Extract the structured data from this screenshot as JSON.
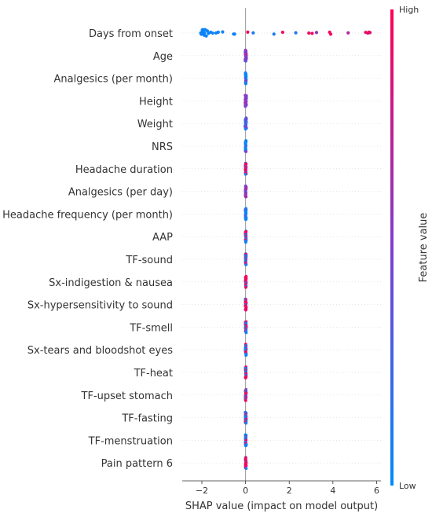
{
  "chart_data": {
    "type": "scatter",
    "title": "",
    "xlabel": "SHAP value (impact on model output)",
    "xlim": [
      -2.9,
      6.2
    ],
    "xticks": [
      -2,
      0,
      2,
      4,
      6
    ],
    "xtick_labels": [
      "−2",
      "0",
      "2",
      "4",
      "6"
    ],
    "colorbar": {
      "label": "Feature value",
      "high": "High",
      "low": "Low",
      "high_color": "#ff0052",
      "low_color": "#008bfb"
    },
    "features": [
      {
        "name": "Days from onset",
        "points": [
          {
            "x": -2.05,
            "v": 0.05
          },
          {
            "x": -2.02,
            "v": 0.05
          },
          {
            "x": -1.98,
            "v": 0.05
          },
          {
            "x": -1.95,
            "v": 0.05
          },
          {
            "x": -1.92,
            "v": 0.05
          },
          {
            "x": -1.88,
            "v": 0.05
          },
          {
            "x": -1.85,
            "v": 0.05
          },
          {
            "x": -1.8,
            "v": 0.05
          },
          {
            "x": -2.0,
            "v": 0.05
          },
          {
            "x": -1.97,
            "v": 0.05
          },
          {
            "x": -1.93,
            "v": 0.05
          },
          {
            "x": -1.9,
            "v": 0.05
          },
          {
            "x": -2.03,
            "v": 0.05
          },
          {
            "x": -1.96,
            "v": 0.05
          },
          {
            "x": -1.89,
            "v": 0.05
          },
          {
            "x": -1.75,
            "v": 0.05
          },
          {
            "x": -1.7,
            "v": 0.05
          },
          {
            "x": -1.6,
            "v": 0.05
          },
          {
            "x": -1.5,
            "v": 0.05
          },
          {
            "x": -1.35,
            "v": 0.05
          },
          {
            "x": -1.25,
            "v": 0.05
          },
          {
            "x": -1.05,
            "v": 0.05
          },
          {
            "x": -0.55,
            "v": 0.05
          },
          {
            "x": -0.5,
            "v": 0.05
          },
          {
            "x": 0.1,
            "v": 0.95
          },
          {
            "x": 0.35,
            "v": 0.1
          },
          {
            "x": 1.3,
            "v": 0.1
          },
          {
            "x": 1.7,
            "v": 0.95
          },
          {
            "x": 2.3,
            "v": 0.15
          },
          {
            "x": 2.9,
            "v": 0.95
          },
          {
            "x": 3.05,
            "v": 0.9
          },
          {
            "x": 3.25,
            "v": 0.6
          },
          {
            "x": 3.85,
            "v": 0.95
          },
          {
            "x": 3.9,
            "v": 0.95
          },
          {
            "x": 4.7,
            "v": 0.7
          },
          {
            "x": 5.5,
            "v": 0.95
          },
          {
            "x": 5.6,
            "v": 0.9
          },
          {
            "x": 5.7,
            "v": 0.8
          },
          {
            "x": 5.65,
            "v": 0.95
          }
        ]
      },
      {
        "name": "Age",
        "spread": 0.03,
        "mix": "purple"
      },
      {
        "name": "Analgesics (per month)",
        "spread": 0.02,
        "mix": "blue"
      },
      {
        "name": "Height",
        "spread": 0.03,
        "mix": "purple"
      },
      {
        "name": "Weight",
        "spread": 0.03,
        "mix": "bluepurple"
      },
      {
        "name": "NRS",
        "spread": 0.02,
        "mix": "blue"
      },
      {
        "name": "Headache duration",
        "spread": 0.02,
        "mix": "red"
      },
      {
        "name": "Analgesics (per day)",
        "spread": 0.02,
        "mix": "purple"
      },
      {
        "name": "Headache frequency (per month)",
        "spread": 0.02,
        "mix": "blue"
      },
      {
        "name": "AAP",
        "spread": 0.02,
        "mix": "bluered"
      },
      {
        "name": "TF-sound",
        "spread": 0.02,
        "mix": "bluered"
      },
      {
        "name": "Sx-indigestion & nausea",
        "spread": 0.02,
        "mix": "red"
      },
      {
        "name": "Sx-hypersensitivity to sound",
        "spread": 0.02,
        "mix": "red"
      },
      {
        "name": "TF-smell",
        "spread": 0.02,
        "mix": "bluered"
      },
      {
        "name": "Sx-tears and bloodshot eyes",
        "spread": 0.02,
        "mix": "bluered"
      },
      {
        "name": "TF-heat",
        "spread": 0.02,
        "mix": "bluered"
      },
      {
        "name": "TF-upset stomach",
        "spread": 0.02,
        "mix": "bluered"
      },
      {
        "name": "TF-fasting",
        "spread": 0.02,
        "mix": "bluered"
      },
      {
        "name": "TF-menstruation",
        "spread": 0.02,
        "mix": "bluered"
      },
      {
        "name": "Pain pattern 6",
        "spread": 0.02,
        "mix": "red"
      }
    ]
  }
}
